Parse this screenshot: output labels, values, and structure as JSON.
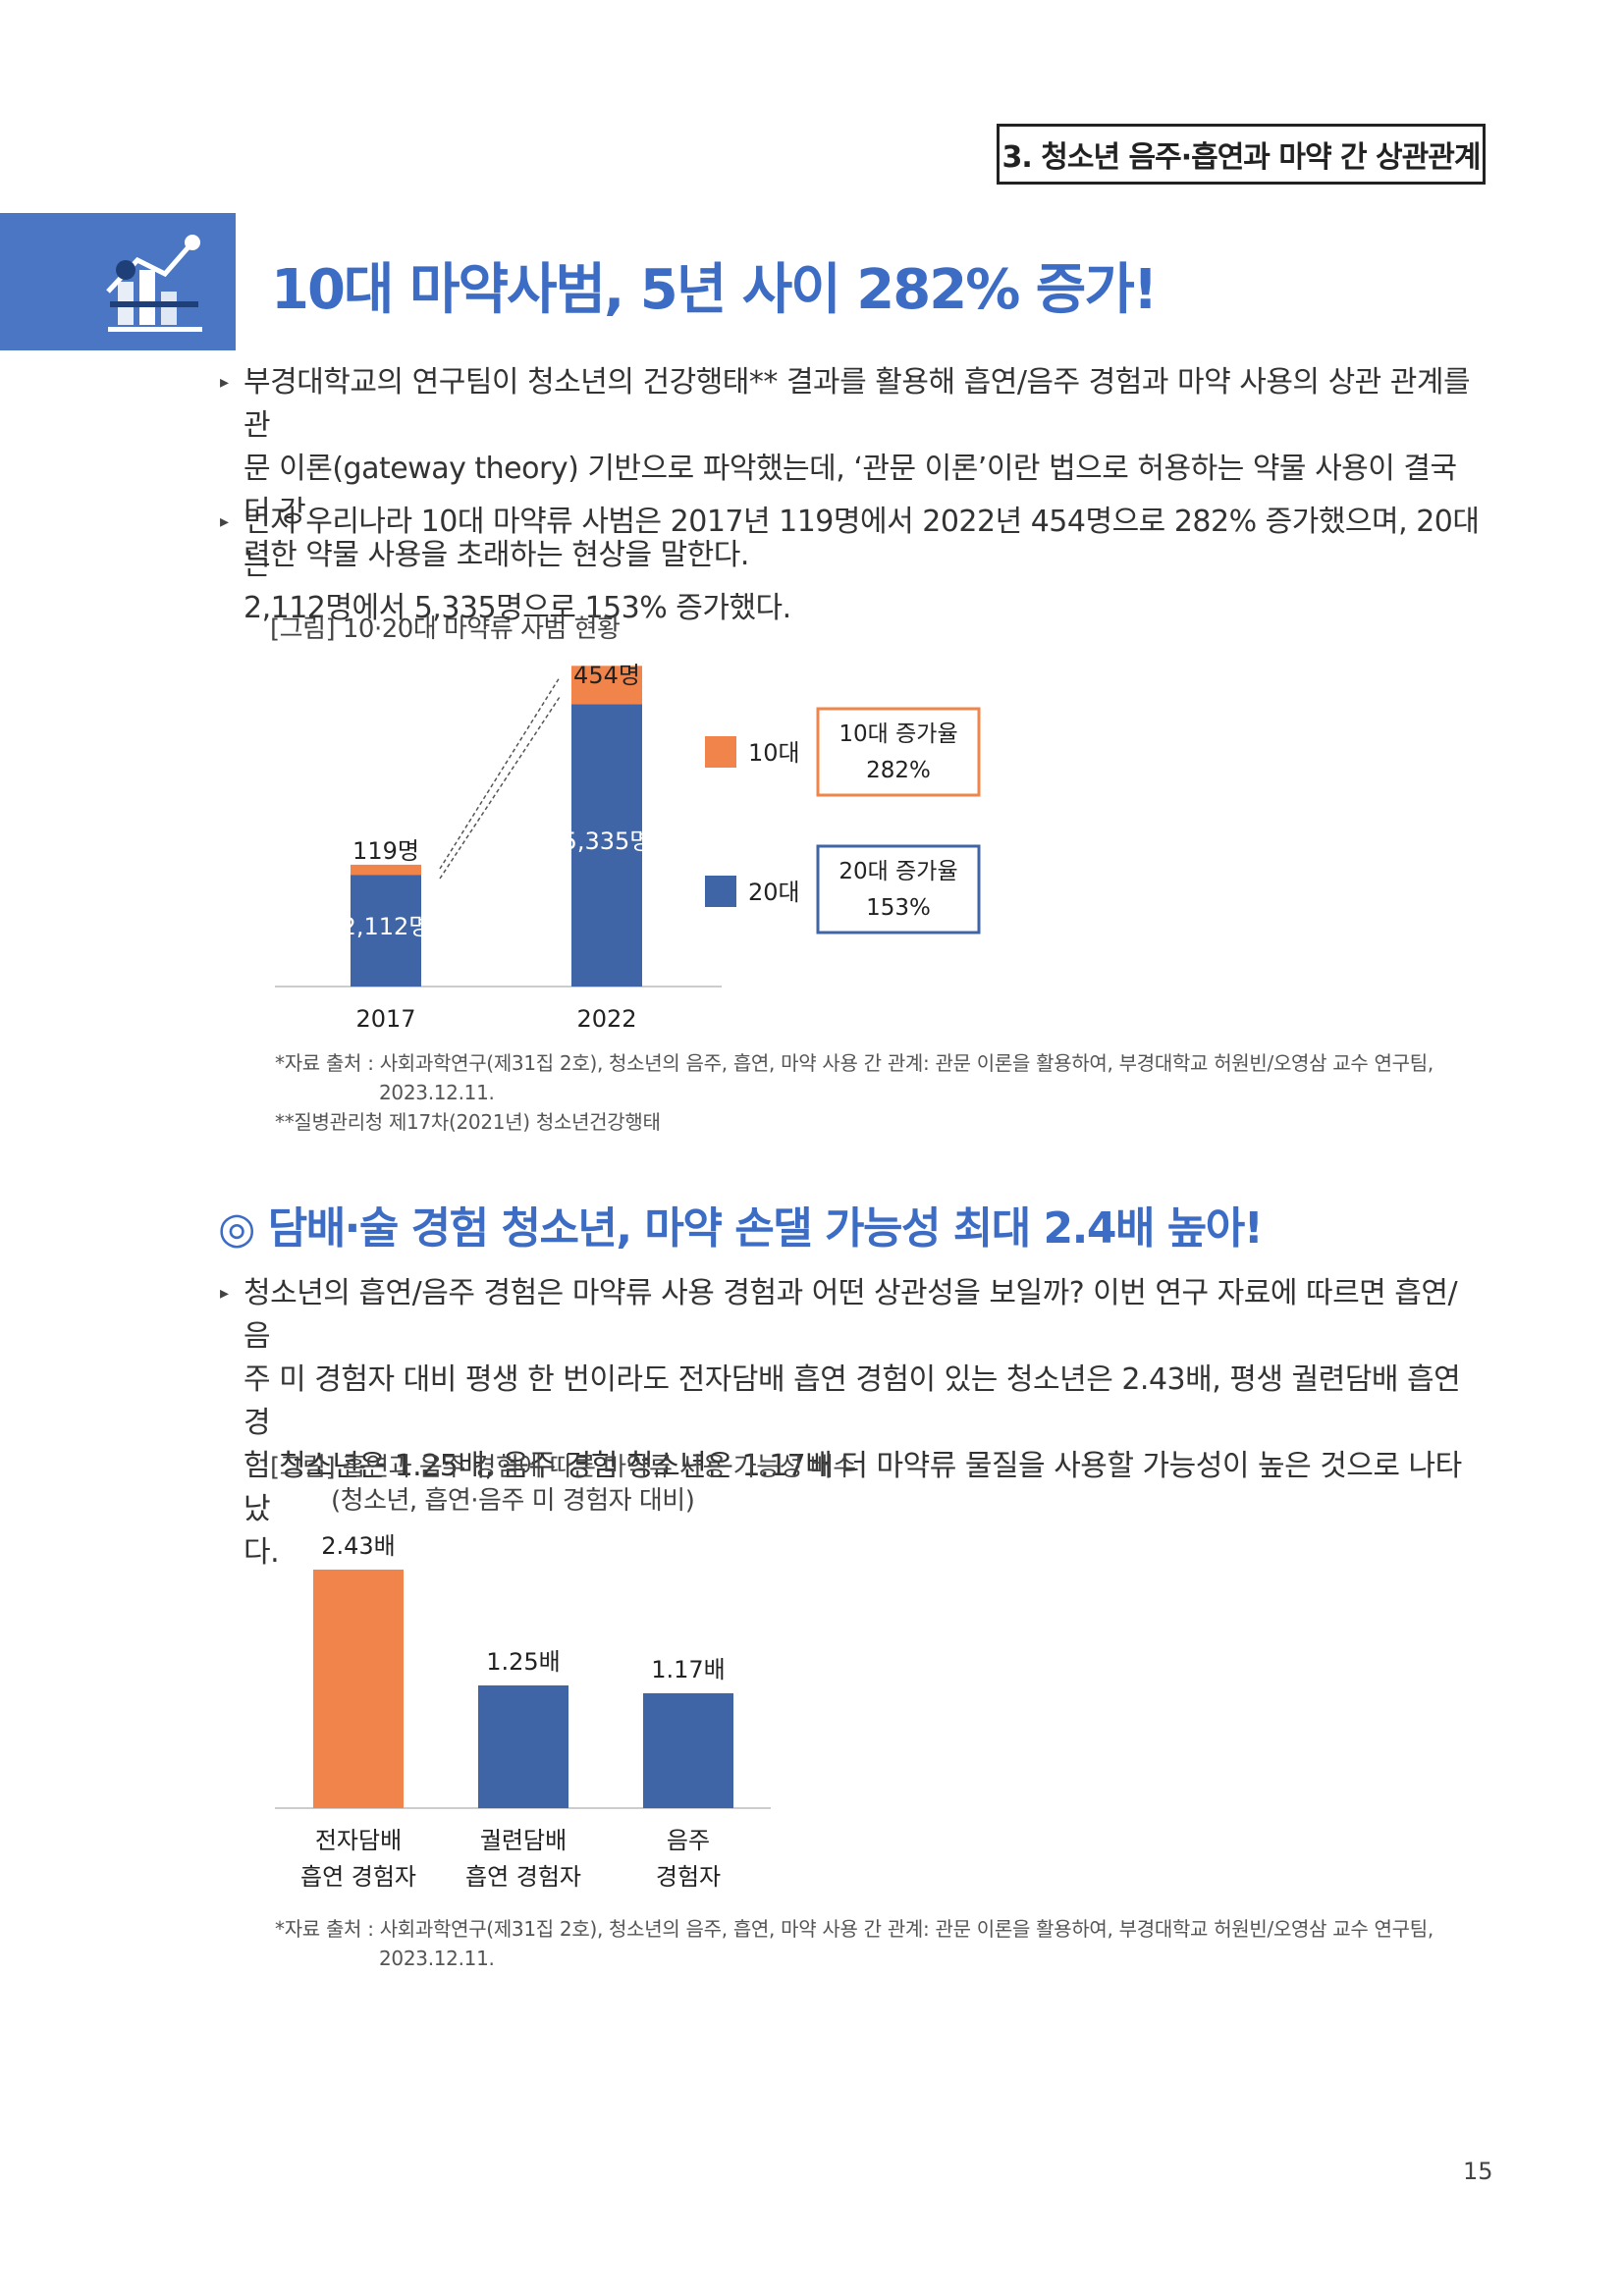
{
  "header": {
    "section_tag": "3. 청소년 음주·흡연과 마약 간 상관관계"
  },
  "section1": {
    "title": "10대 마약사범, 5년 사이 282% 증가!",
    "bullets": [
      [
        "부경대학교의 연구팀이 청소년의 건강행태** 결과를 활용해 흡연/음주 경험과 마약 사용의 상관 관계를 관",
        "문 이론(gateway theory) 기반으로 파악했는데, ‘관문 이론’이란 법으로 허용하는 약물 사용이 결국 더 강",
        "력한 약물 사용을 초래하는 현상을 말한다."
      ],
      [
        "먼저 우리나라 10대 마약류 사범은 2017년 119명에서 2022년 454명으로 282% 증가했으며, 20대는",
        "2,112명에서 5,335명으로 153% 증가했다."
      ]
    ],
    "figure_caption": "[그림] 10·20대 마약류 사범 현황",
    "source_lines": [
      "*자료 출처 : 사회과학연구(제31집 2호), 청소년의 음주, 흡연, 마약 사용 간 관계: 관문 이론을 활용하여, 부경대학교 허원빈/오영삼 교수 연구팀,",
      "2023.12.11.",
      "**질병관리청 제17차(2021년) 청소년건강행태"
    ]
  },
  "section2": {
    "title": "◎ 담배·술 경험 청소년, 마약 손댈 가능성 최대 2.4배 높아!",
    "bullets": [
      [
        "청소년의 흡연/음주 경험은 마약류 사용 경험과 어떤 상관성을 보일까? 이번 연구 자료에 따르면 흡연/음",
        "주 미 경험자 대비 평생 한 번이라도 전자담배 흡연 경험이 있는 청소년은  2.43배, 평생 궐련담배 흡연 경",
        "험 청소년은 1.25배, 음주 경험 청소년은 1.17배 더 마약류 물질을 사용할 가능성이 높은 것으로 나타났",
        "다."
      ]
    ],
    "figure_caption": [
      "[그림] 흡연과 음주 경험에 따른 마약류 사용 가능성 배수",
      "(청소년, 흡연·음주 미 경험자 대비)"
    ],
    "source_lines": [
      "*자료 출처 : 사회과학연구(제31집 2호), 청소년의 음주, 흡연, 마약 사용 간 관계: 관문 이론을 활용하여, 부경대학교 허원빈/오영삼 교수 연구팀,",
      "2023.12.11."
    ]
  },
  "colors": {
    "orange": "#f0844a",
    "blue": "#3f65a6",
    "title_blue": "#3c6cc4"
  },
  "chart_data": [
    {
      "type": "bar",
      "stacked": true,
      "categories": [
        "2017",
        "2022"
      ],
      "series": [
        {
          "name": "20대",
          "values": [
            2112,
            5335
          ],
          "labels": [
            "2,112명",
            "5,335명"
          ],
          "color": "#3f65a6"
        },
        {
          "name": "10대",
          "values": [
            119,
            454
          ],
          "labels": [
            "119명",
            "454명"
          ],
          "color": "#f0844a"
        }
      ],
      "legend": [
        "10대",
        "20대"
      ],
      "legend_position": "right",
      "callouts": [
        {
          "text": [
            "10대 증가율",
            "282%"
          ],
          "color": "#f0844a"
        },
        {
          "text": [
            "20대 증가율",
            "153%"
          ],
          "color": "#3f65a6"
        }
      ],
      "ylim": [
        0,
        6000
      ],
      "grid": false
    },
    {
      "type": "bar",
      "categories": [
        [
          "전자담배",
          "흡연 경험자"
        ],
        [
          "궐련담배",
          "흡연 경험자"
        ],
        [
          "음주",
          "경험자"
        ]
      ],
      "values": [
        2.43,
        1.25,
        1.17
      ],
      "labels": [
        "2.43배",
        "1.25배",
        "1.17배"
      ],
      "colors": [
        "#f0844a",
        "#3f65a6",
        "#3f65a6"
      ],
      "ylim": [
        0,
        2.6
      ],
      "grid": false
    }
  ],
  "page_number": "15"
}
